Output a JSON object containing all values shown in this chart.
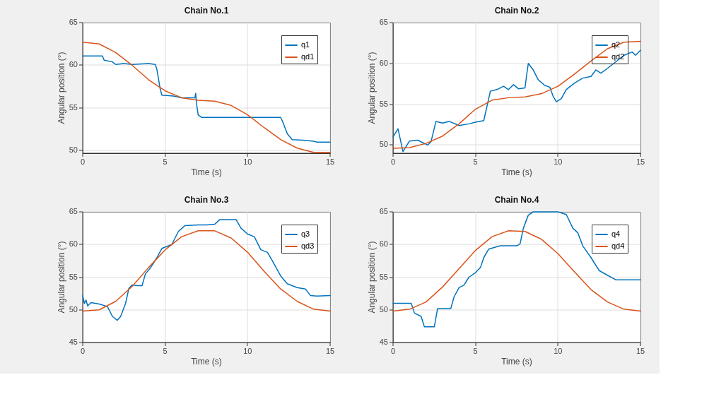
{
  "chart_data": [
    {
      "type": "line",
      "title": "Chain No.1",
      "xlabel": "Time (s)",
      "ylabel": "Angular position (°)",
      "xlim": [
        0,
        15
      ],
      "xticks": [
        0,
        5,
        10,
        15
      ],
      "ylim": [
        49.7,
        65
      ],
      "yticks": [
        50,
        55,
        60,
        65
      ],
      "grid": true,
      "legend": "top right",
      "series": [
        {
          "name": "q1",
          "color": "#0072bd",
          "x": [
            0,
            1.2,
            1.3,
            1.8,
            2,
            2.5,
            3,
            4,
            4.4,
            4.5,
            4.7,
            4.8,
            5.5,
            6,
            6.8,
            6.85,
            6.9,
            7.0,
            7.2,
            10,
            12,
            12.1,
            12.4,
            12.7,
            13.5,
            14,
            14.2,
            15
          ],
          "values": [
            61.1,
            61.1,
            60.6,
            60.4,
            60.1,
            60.2,
            60.1,
            60.2,
            60.1,
            59.5,
            57.2,
            56.5,
            56.4,
            56.2,
            56.2,
            56.7,
            55.5,
            54.2,
            53.9,
            53.9,
            53.9,
            53.5,
            52,
            51.3,
            51.2,
            51.1,
            51.0,
            51.0
          ]
        },
        {
          "name": "qd1",
          "color": "#d95319",
          "x": [
            0,
            1,
            2,
            3,
            4,
            5,
            6,
            7,
            8,
            9,
            10,
            11,
            12,
            13,
            14,
            15
          ],
          "values": [
            62.7,
            62.5,
            61.5,
            60.0,
            58.3,
            57.0,
            56.2,
            55.9,
            55.8,
            55.3,
            54.2,
            52.7,
            51.3,
            50.3,
            49.8,
            49.8
          ]
        }
      ]
    },
    {
      "type": "line",
      "title": "Chain No.2",
      "xlabel": "Time (s)",
      "ylabel": "Angular position (°)",
      "xlim": [
        0,
        15
      ],
      "xticks": [
        0,
        5,
        10,
        15
      ],
      "ylim": [
        49,
        65
      ],
      "yticks": [
        50,
        55,
        60,
        65
      ],
      "grid": true,
      "legend": "top right",
      "series": [
        {
          "name": "q2",
          "color": "#0072bd",
          "x": [
            0,
            0.3,
            0.6,
            1,
            1.5,
            1.8,
            2.1,
            2.3,
            2.6,
            3,
            3.4,
            4,
            4.6,
            5,
            5.5,
            5.9,
            6.3,
            6.7,
            7,
            7.3,
            7.6,
            8,
            8.1,
            8.2,
            8.5,
            8.8,
            9.2,
            9.5,
            9.7,
            9.9,
            10.2,
            10.5,
            11,
            11.5,
            12,
            12.3,
            12.6,
            13,
            13.5,
            14,
            14.5,
            14.7,
            15
          ],
          "values": [
            51,
            52,
            49.2,
            50.5,
            50.6,
            50.3,
            50.0,
            50.4,
            52.9,
            52.7,
            52.9,
            52.4,
            52.6,
            52.8,
            53.0,
            56.6,
            56.8,
            57.2,
            56.8,
            57.4,
            56.9,
            57,
            58.6,
            60.0,
            59.2,
            58.0,
            57.3,
            57.1,
            56.0,
            55.3,
            55.7,
            56.8,
            57.6,
            58.2,
            58.4,
            59.2,
            58.8,
            59.4,
            60.2,
            61.0,
            61.4,
            61.0,
            61.6
          ]
        },
        {
          "name": "qd2",
          "color": "#d95319",
          "x": [
            0,
            1,
            2,
            3,
            4,
            5,
            6,
            7,
            8,
            9,
            10,
            11,
            12,
            13,
            14,
            15
          ],
          "values": [
            49.6,
            49.7,
            50.2,
            51.1,
            52.6,
            54.4,
            55.5,
            55.8,
            55.9,
            56.3,
            57.2,
            58.7,
            60.3,
            61.8,
            62.6,
            62.7
          ]
        }
      ]
    },
    {
      "type": "line",
      "title": "Chain No.3",
      "xlabel": "Time (s)",
      "ylabel": "Angular position (°)",
      "xlim": [
        0,
        15
      ],
      "xticks": [
        0,
        5,
        10,
        15
      ],
      "ylim": [
        45,
        65
      ],
      "yticks": [
        45,
        50,
        55,
        60,
        65
      ],
      "grid": true,
      "legend": "top right",
      "series": [
        {
          "name": "q3",
          "color": "#0072bd",
          "x": [
            0,
            0.1,
            0.2,
            0.3,
            0.5,
            1,
            1.5,
            1.8,
            2.1,
            2.3,
            2.6,
            2.8,
            3,
            3.3,
            3.6,
            3.8,
            4.1,
            4.5,
            4.8,
            5.1,
            5.4,
            5.8,
            6.2,
            7,
            7.5,
            8,
            8.3,
            9,
            9.3,
            9.6,
            10,
            10.4,
            10.8,
            11.2,
            11.5,
            12,
            12.4,
            13,
            13.5,
            13.8,
            14.2,
            15
          ],
          "values": [
            52.2,
            51,
            51.5,
            50.6,
            51.1,
            50.9,
            50.5,
            49,
            48.4,
            49,
            51,
            53.3,
            53.8,
            53.7,
            53.7,
            55.5,
            56.4,
            58,
            59.4,
            59.7,
            60.0,
            62,
            62.9,
            63,
            63.0,
            63.1,
            63.8,
            63.8,
            63.8,
            62.5,
            61.6,
            61.2,
            59.2,
            58.8,
            57.5,
            55.2,
            54,
            53.4,
            53.2,
            52.2,
            52.1,
            52.2
          ]
        },
        {
          "name": "qd3",
          "color": "#d95319",
          "x": [
            0,
            1,
            2,
            3,
            4,
            5,
            6,
            7,
            8,
            9,
            10,
            11,
            12,
            13,
            14,
            15
          ],
          "values": [
            49.8,
            50.0,
            51.3,
            53.6,
            56.5,
            59.2,
            61.2,
            62.1,
            62.1,
            61.0,
            58.8,
            55.9,
            53.2,
            51.3,
            50.1,
            49.8
          ]
        }
      ]
    },
    {
      "type": "line",
      "title": "Chain No.4",
      "xlabel": "Time (s)",
      "ylabel": "Angular position (°)",
      "xlim": [
        0,
        15
      ],
      "xticks": [
        0,
        5,
        10,
        15
      ],
      "ylim": [
        45,
        65
      ],
      "yticks": [
        45,
        50,
        55,
        60,
        65
      ],
      "grid": true,
      "legend": "top right",
      "series": [
        {
          "name": "q4",
          "color": "#0072bd",
          "x": [
            0,
            1.1,
            1.3,
            1.7,
            1.9,
            2.5,
            2.7,
            3.5,
            3.7,
            4,
            4.3,
            4.6,
            5,
            5.3,
            5.5,
            5.8,
            6.2,
            6.5,
            7.5,
            7.7,
            7.9,
            8.2,
            8.5,
            10,
            10.5,
            10.9,
            11.2,
            11.5,
            12,
            12.5,
            13,
            13.5,
            15
          ],
          "values": [
            51,
            51,
            49.5,
            49,
            47.4,
            47.4,
            50.2,
            50.2,
            52,
            53.4,
            53.8,
            55,
            55.7,
            56.5,
            58,
            59.3,
            59.6,
            59.8,
            59.8,
            60.1,
            62.5,
            64.5,
            65.0,
            65,
            64.6,
            62.5,
            61.8,
            59.8,
            58,
            56,
            55.3,
            54.6,
            54.6
          ]
        },
        {
          "name": "qd4",
          "color": "#d95319",
          "x": [
            0,
            1,
            2,
            3,
            4,
            5,
            6,
            7,
            8,
            9,
            10,
            11,
            12,
            13,
            14,
            15
          ],
          "values": [
            49.8,
            50.1,
            51.2,
            53.5,
            56.3,
            59.1,
            61.2,
            62.1,
            62.0,
            60.8,
            58.6,
            55.8,
            53.1,
            51.2,
            50.1,
            49.8
          ]
        }
      ]
    }
  ]
}
